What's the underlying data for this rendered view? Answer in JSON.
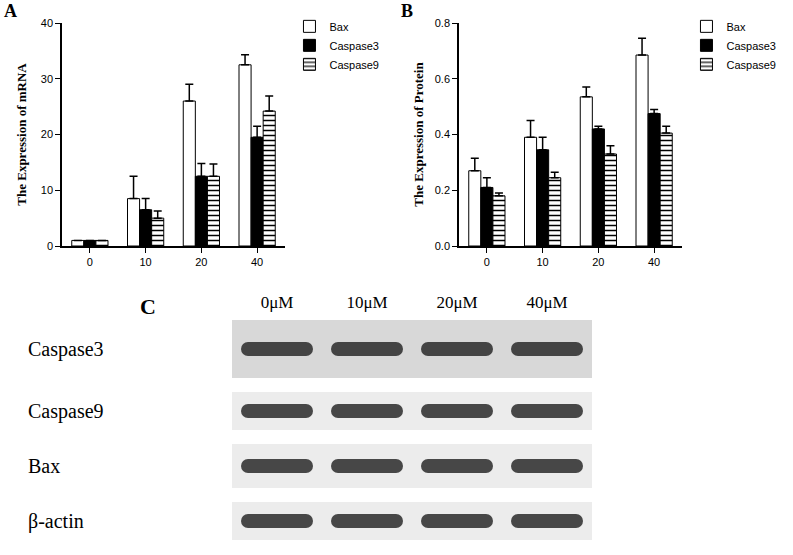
{
  "chart_data": [
    {
      "type": "bar",
      "title": "A",
      "y_label": "The Expression of mRNA",
      "categories": [
        "0",
        "10",
        "20",
        "40"
      ],
      "series": [
        {
          "name": "Bax",
          "color": "#ffffff",
          "values": [
            1,
            8.5,
            26,
            32.5
          ],
          "errors": [
            0,
            4,
            3,
            1.8
          ]
        },
        {
          "name": "Caspase3",
          "color": "#000000",
          "values": [
            1,
            6.5,
            12.5,
            19.5
          ],
          "errors": [
            0,
            2,
            2.3,
            2
          ]
        },
        {
          "name": "Caspase9",
          "color": "#ffffff",
          "marker": "hatch",
          "values": [
            1,
            5,
            12.5,
            24.2
          ],
          "errors": [
            0,
            1.3,
            2.2,
            2.7
          ]
        }
      ],
      "ylim": [
        0,
        40
      ],
      "yticks": [
        0,
        10,
        20,
        30,
        40
      ],
      "grid": false,
      "legend": "top right"
    },
    {
      "type": "bar",
      "title": "B",
      "y_label": "The Expression of Protein",
      "categories": [
        "0",
        "10",
        "20",
        "40"
      ],
      "series": [
        {
          "name": "Bax",
          "color": "#ffffff",
          "values": [
            0.27,
            0.39,
            0.535,
            0.685
          ],
          "errors": [
            0.045,
            0.06,
            0.035,
            0.06
          ]
        },
        {
          "name": "Caspase3",
          "color": "#000000",
          "values": [
            0.21,
            0.345,
            0.42,
            0.475
          ],
          "errors": [
            0.035,
            0.045,
            0.01,
            0.015
          ]
        },
        {
          "name": "Caspase9",
          "color": "#ffffff",
          "marker": "hatch",
          "values": [
            0.18,
            0.245,
            0.33,
            0.405
          ],
          "errors": [
            0.01,
            0.02,
            0.03,
            0.025
          ]
        }
      ],
      "ylim": [
        0,
        0.8
      ],
      "yticks": [
        {
          "value": 0,
          "label": "0.0"
        },
        0.2,
        0.4,
        0.6,
        0.8
      ],
      "grid": false,
      "legend": "top right"
    }
  ],
  "blot": {
    "label": "C",
    "lanes": [
      "0μM",
      "10μM",
      "20μM",
      "40μM"
    ],
    "rows": [
      "Caspase3",
      "Caspase9",
      "Bax",
      "β-actin"
    ]
  }
}
